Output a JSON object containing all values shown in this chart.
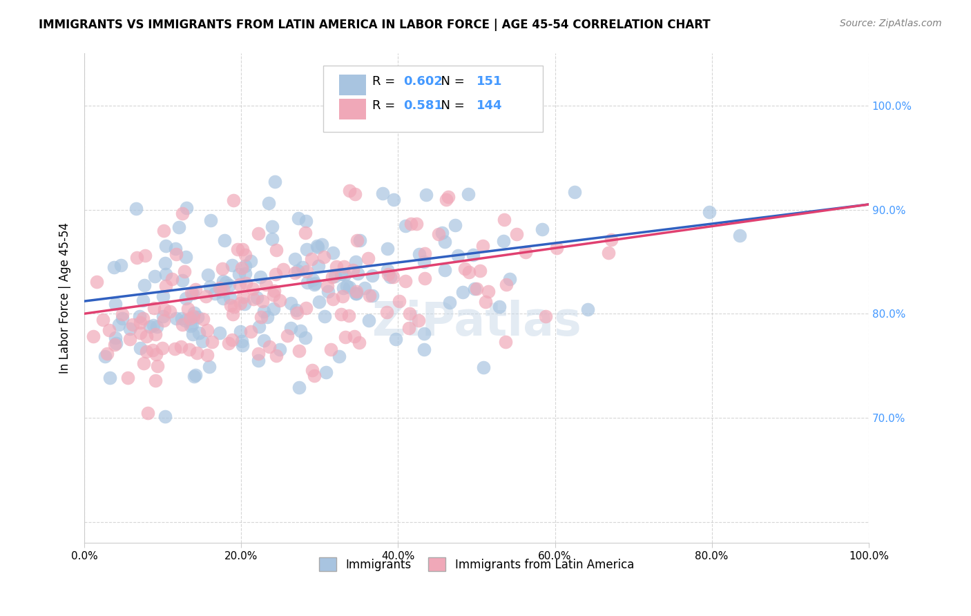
{
  "title": "IMMIGRANTS VS IMMIGRANTS FROM LATIN AMERICA IN LABOR FORCE | AGE 45-54 CORRELATION CHART",
  "source": "Source: ZipAtlas.com",
  "xlabel": "",
  "ylabel": "In Labor Force | Age 45-54",
  "r_blue": 0.602,
  "n_blue": 151,
  "r_pink": 0.581,
  "n_pink": 144,
  "color_blue": "#a8c4e0",
  "color_pink": "#f0a8b8",
  "line_color_blue": "#3060c0",
  "line_color_pink": "#e04070",
  "xlim": [
    0.0,
    1.0
  ],
  "ylim": [
    0.58,
    1.05
  ],
  "right_yticks": [
    0.7,
    0.8,
    0.9,
    1.0
  ],
  "right_ytick_labels": [
    "70.0%",
    "80.0%",
    "90.0%",
    "100.0%"
  ],
  "xtick_labels": [
    "0.0%",
    "20.0%",
    "40.0%",
    "60.0%",
    "80.0%",
    "100.0%"
  ],
  "xtick_vals": [
    0.0,
    0.2,
    0.4,
    0.6,
    0.8,
    1.0
  ],
  "legend_label_blue": "Immigrants",
  "legend_label_pink": "Immigrants from Latin America",
  "watermark": "ZiPatlas",
  "background_color": "#ffffff",
  "grid_color": "#cccccc"
}
